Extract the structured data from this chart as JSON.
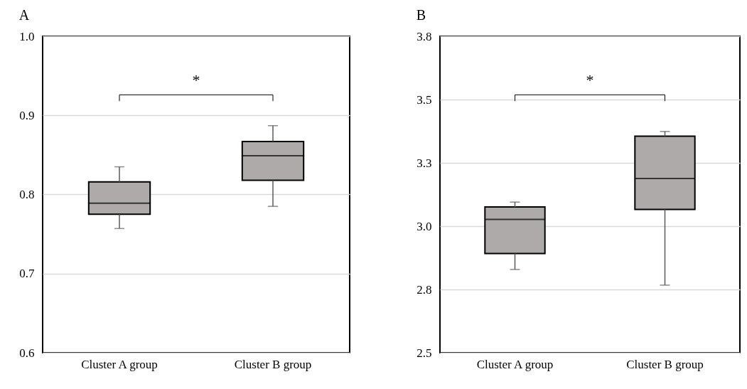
{
  "chart_data": [
    {
      "type": "box",
      "title": "A",
      "categories": [
        "Cluster A group",
        "Cluster B group"
      ],
      "series": [
        {
          "color": "#aeaaaa",
          "boxes": [
            {
              "low": 0.757,
              "q1": 0.775,
              "median": 0.789,
              "q3": 0.816,
              "high": 0.835
            },
            {
              "low": 0.785,
              "q1": 0.818,
              "median": 0.849,
              "q3": 0.867,
              "high": 0.887
            }
          ]
        }
      ],
      "ylim": [
        0.6,
        1.0
      ],
      "yticks": [
        {
          "value": 0.6,
          "label": "0.6"
        },
        {
          "value": 0.7,
          "label": "0.7"
        },
        {
          "value": 0.8,
          "label": "0.8"
        },
        {
          "value": 0.9,
          "label": "0.9"
        },
        {
          "value": 1.0,
          "label": "1.0"
        }
      ],
      "grid": "y",
      "annotations": [
        "*"
      ]
    },
    {
      "type": "box",
      "title": "B",
      "categories": [
        "Cluster A group",
        "Cluster B group"
      ],
      "series": [
        {
          "color": "#aeaaaa",
          "boxes": [
            {
              "low": 2.829,
              "q1": 2.892,
              "median": 3.027,
              "q3": 3.076,
              "high": 3.095
            },
            {
              "low": 2.767,
              "q1": 3.066,
              "median": 3.188,
              "q3": 3.355,
              "high": 3.374
            }
          ]
        }
      ],
      "ylim": [
        2.5,
        3.75
      ],
      "yticks": [
        {
          "value": 2.5,
          "label": "2.5"
        },
        {
          "value": 2.75,
          "label": "2.8"
        },
        {
          "value": 3.0,
          "label": "3.0"
        },
        {
          "value": 3.25,
          "label": "3.3"
        },
        {
          "value": 3.5,
          "label": "3.5"
        },
        {
          "value": 3.75,
          "label": "3.8"
        }
      ],
      "grid": "y",
      "annotations": [
        "*"
      ]
    }
  ]
}
